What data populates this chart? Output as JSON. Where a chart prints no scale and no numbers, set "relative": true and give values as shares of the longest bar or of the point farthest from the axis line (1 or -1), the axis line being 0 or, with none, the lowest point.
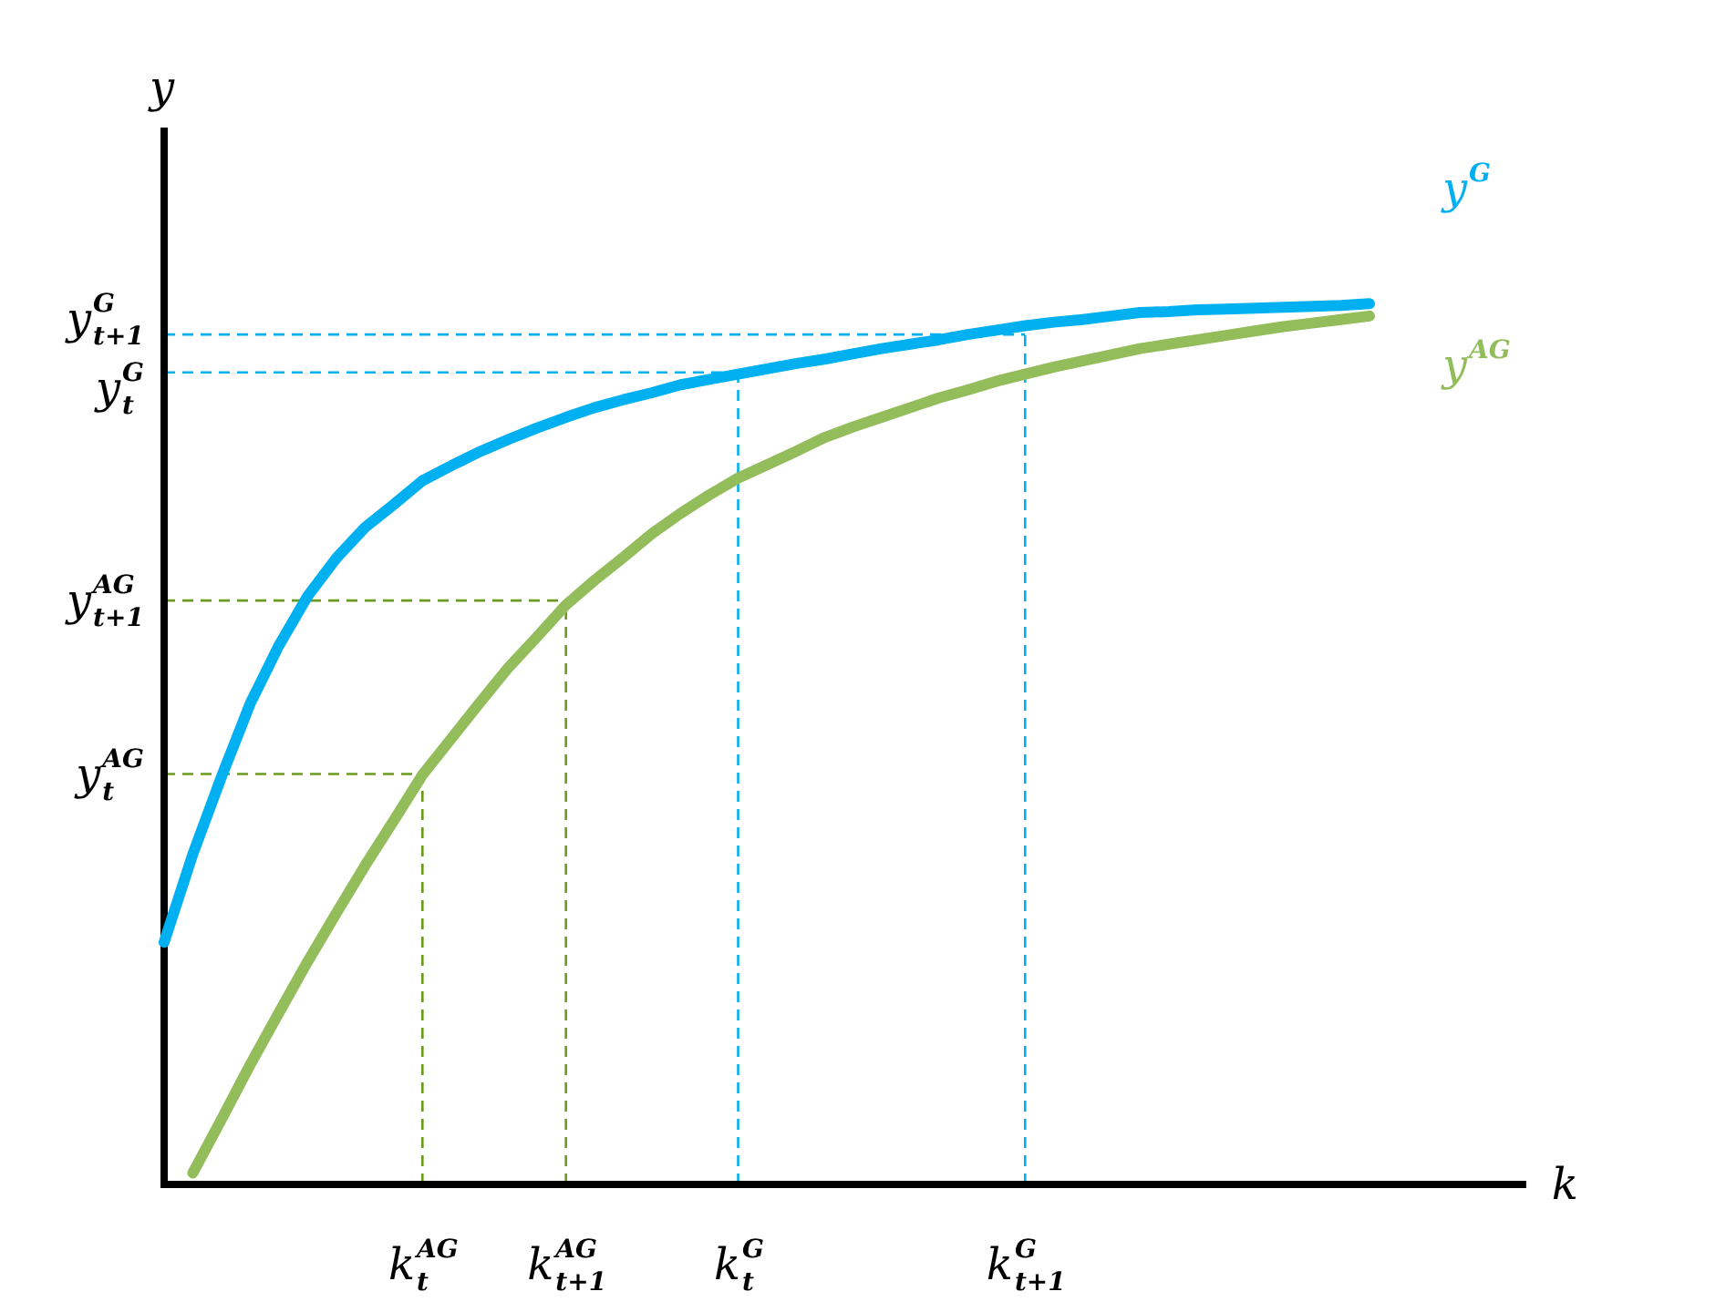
{
  "chart_data": {
    "type": "line",
    "relative": true,
    "xlabel": "k",
    "ylabel": "y",
    "legend": false,
    "marker": "none",
    "line_style": "solid",
    "grid": false,
    "categories": [
      null,
      null,
      null,
      null,
      null,
      null,
      null,
      null,
      null,
      "k$_{t}$$^{AG}$",
      null,
      null,
      null,
      null,
      "k$_{t+1}$$^{AG}$",
      null,
      null,
      null,
      null,
      null,
      "k$_{t}$$^{G}$",
      null,
      null,
      null,
      null,
      null,
      null,
      null,
      null,
      null,
      "k$_{t+1}$$^{G}$",
      null,
      null,
      null,
      null,
      null,
      null,
      null,
      null,
      null,
      null,
      null,
      null
    ],
    "series": [
      {
        "name": "y$^{G}$",
        "color": "#00b0f0",
        "values": [
          0.275,
          0.375,
          0.463,
          0.546,
          0.612,
          0.668,
          0.711,
          0.746,
          0.772,
          0.799,
          0.816,
          0.832,
          0.846,
          0.859,
          0.871,
          0.882,
          0.891,
          0.899,
          0.908,
          0.914,
          0.92,
          0.926,
          0.932,
          0.937,
          0.943,
          0.949,
          0.954,
          0.959,
          0.965,
          0.97,
          0.975,
          0.979,
          0.982,
          0.986,
          0.99,
          0.991,
          0.993,
          0.994,
          0.995,
          0.996,
          0.997,
          0.998,
          1.0
        ]
      },
      {
        "name": "y$^{AG}$",
        "color": "#92bd5a",
        "values": [
          null,
          0.013,
          0.074,
          0.136,
          0.195,
          0.253,
          0.308,
          0.362,
          0.413,
          0.465,
          0.506,
          0.547,
          0.587,
          0.622,
          0.658,
          0.686,
          0.712,
          0.739,
          0.762,
          0.783,
          0.802,
          0.817,
          0.832,
          0.848,
          0.86,
          0.871,
          0.882,
          0.893,
          0.902,
          0.912,
          0.92,
          0.928,
          0.935,
          0.942,
          0.949,
          0.954,
          0.959,
          0.964,
          0.969,
          0.974,
          0.978,
          0.982,
          0.986
        ]
      }
    ],
    "ref_lines": [
      {
        "axis": "x",
        "value": "k$_{t}$$^{AG}$",
        "color": "#6a9a1f",
        "line_style": "dashed"
      },
      {
        "axis": "x",
        "value": "k$_{t+1}$$^{AG}$",
        "color": "#6a9a1f",
        "line_style": "dashed"
      },
      {
        "axis": "x",
        "value": "k$_{t}$$^{G}$",
        "color": "#00b0f0",
        "line_style": "dashed"
      },
      {
        "axis": "x",
        "value": "k$_{t+1}$$^{G}$",
        "color": "#00b0f0",
        "line_style": "dashed"
      },
      {
        "axis": "y",
        "value": 0.466,
        "label": "y$_{t}$$^{AG}$",
        "color": "#6a9a1f",
        "line_style": "dashed"
      },
      {
        "axis": "y",
        "value": 0.663,
        "label": "y$_{t+1}$$^{AG}$",
        "color": "#6a9a1f",
        "line_style": "dashed"
      },
      {
        "axis": "y",
        "value": 0.922,
        "label": "y$_{t}$$^{G}$",
        "color": "#00b0f0",
        "line_style": "dashed"
      },
      {
        "axis": "y",
        "value": 0.965,
        "label": "y$_{t+1}$$^{G}$",
        "color": "#00b0f0",
        "line_style": "dashed"
      }
    ]
  }
}
